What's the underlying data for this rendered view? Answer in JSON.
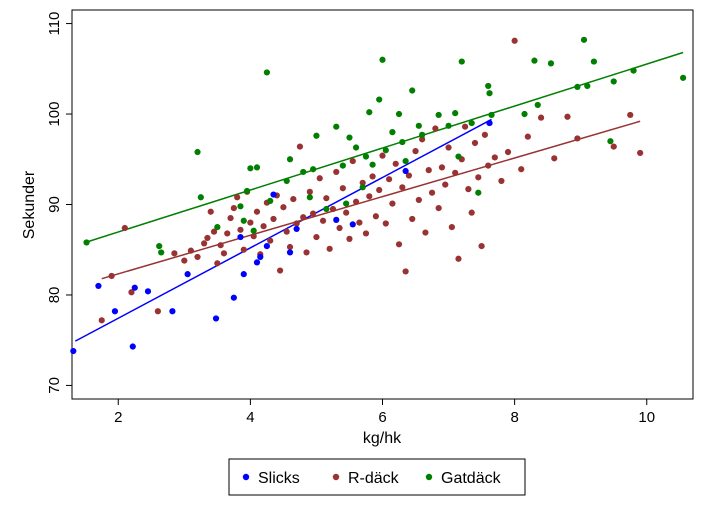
{
  "chart_data": {
    "type": "scatter",
    "title": "",
    "xlabel": "kg/hk",
    "ylabel": "Sekunder",
    "xlim": [
      1.3,
      10.7
    ],
    "ylim": [
      68.5,
      111.5
    ],
    "x_ticks": [
      2,
      4,
      6,
      8,
      10
    ],
    "y_ticks": [
      70,
      80,
      90,
      100,
      110
    ],
    "grid": false,
    "legend_position": "bottom",
    "series": [
      {
        "name": "Slicks",
        "color": "#0000ff",
        "fit": {
          "x": [
            1.35,
            7.65
          ],
          "y": [
            74.9,
            99.4
          ]
        },
        "points": [
          [
            1.32,
            73.8
          ],
          [
            1.7,
            81.0
          ],
          [
            1.95,
            78.2
          ],
          [
            2.22,
            74.3
          ],
          [
            2.25,
            80.8
          ],
          [
            2.45,
            80.4
          ],
          [
            2.82,
            78.2
          ],
          [
            3.05,
            82.3
          ],
          [
            3.48,
            77.4
          ],
          [
            3.75,
            79.7
          ],
          [
            3.85,
            86.4
          ],
          [
            3.9,
            82.3
          ],
          [
            4.1,
            83.6
          ],
          [
            4.15,
            84.2
          ],
          [
            4.25,
            85.4
          ],
          [
            4.35,
            91.1
          ],
          [
            4.6,
            84.7
          ],
          [
            4.7,
            87.3
          ],
          [
            5.3,
            88.3
          ],
          [
            5.55,
            87.8
          ],
          [
            6.35,
            93.7
          ],
          [
            7.62,
            99.0
          ]
        ]
      },
      {
        "name": "R-däck",
        "color": "#993333",
        "fit": {
          "x": [
            1.75,
            9.9
          ],
          "y": [
            81.8,
            99.2
          ]
        },
        "points": [
          [
            1.75,
            77.2
          ],
          [
            1.9,
            82.1
          ],
          [
            2.1,
            87.4
          ],
          [
            2.2,
            80.3
          ],
          [
            2.6,
            78.2
          ],
          [
            2.85,
            84.6
          ],
          [
            3.0,
            83.8
          ],
          [
            3.1,
            84.9
          ],
          [
            3.2,
            84.2
          ],
          [
            3.3,
            85.7
          ],
          [
            3.35,
            86.3
          ],
          [
            3.4,
            89.2
          ],
          [
            3.45,
            87.0
          ],
          [
            3.5,
            83.5
          ],
          [
            3.55,
            85.5
          ],
          [
            3.6,
            84.6
          ],
          [
            3.65,
            86.8
          ],
          [
            3.7,
            88.5
          ],
          [
            3.75,
            89.6
          ],
          [
            3.8,
            90.8
          ],
          [
            3.85,
            87.2
          ],
          [
            3.9,
            85.0
          ],
          [
            3.95,
            91.4
          ],
          [
            4.0,
            88.0
          ],
          [
            4.05,
            86.5
          ],
          [
            4.1,
            89.2
          ],
          [
            4.15,
            84.5
          ],
          [
            4.2,
            87.6
          ],
          [
            4.25,
            90.2
          ],
          [
            4.3,
            86.0
          ],
          [
            4.35,
            88.4
          ],
          [
            4.4,
            91.0
          ],
          [
            4.45,
            82.7
          ],
          [
            4.5,
            89.7
          ],
          [
            4.55,
            87.0
          ],
          [
            4.6,
            85.3
          ],
          [
            4.65,
            90.6
          ],
          [
            4.7,
            87.9
          ],
          [
            4.75,
            96.4
          ],
          [
            4.8,
            88.6
          ],
          [
            4.85,
            84.7
          ],
          [
            4.9,
            91.4
          ],
          [
            4.95,
            89.0
          ],
          [
            5.0,
            86.4
          ],
          [
            5.05,
            92.9
          ],
          [
            5.1,
            88.2
          ],
          [
            5.15,
            90.7
          ],
          [
            5.2,
            85.1
          ],
          [
            5.25,
            89.5
          ],
          [
            5.3,
            93.6
          ],
          [
            5.35,
            87.4
          ],
          [
            5.4,
            91.8
          ],
          [
            5.45,
            89.1
          ],
          [
            5.5,
            86.2
          ],
          [
            5.55,
            94.8
          ],
          [
            5.6,
            90.3
          ],
          [
            5.65,
            88.0
          ],
          [
            5.7,
            92.4
          ],
          [
            5.75,
            86.8
          ],
          [
            5.8,
            90.9
          ],
          [
            5.85,
            93.1
          ],
          [
            5.9,
            88.7
          ],
          [
            5.95,
            91.6
          ],
          [
            6.0,
            95.4
          ],
          [
            6.05,
            87.9
          ],
          [
            6.1,
            92.8
          ],
          [
            6.15,
            90.1
          ],
          [
            6.2,
            94.5
          ],
          [
            6.25,
            85.6
          ],
          [
            6.3,
            91.9
          ],
          [
            6.35,
            82.6
          ],
          [
            6.4,
            93.2
          ],
          [
            6.45,
            88.4
          ],
          [
            6.5,
            95.9
          ],
          [
            6.55,
            90.5
          ],
          [
            6.6,
            97.2
          ],
          [
            6.65,
            86.9
          ],
          [
            6.7,
            93.8
          ],
          [
            6.75,
            91.3
          ],
          [
            6.8,
            98.4
          ],
          [
            6.85,
            89.6
          ],
          [
            6.9,
            94.1
          ],
          [
            6.95,
            92.2
          ],
          [
            7.0,
            96.3
          ],
          [
            7.05,
            87.5
          ],
          [
            7.1,
            93.5
          ],
          [
            7.15,
            84.0
          ],
          [
            7.2,
            95.0
          ],
          [
            7.25,
            98.6
          ],
          [
            7.3,
            91.7
          ],
          [
            7.35,
            89.1
          ],
          [
            7.4,
            96.8
          ],
          [
            7.45,
            93.0
          ],
          [
            7.5,
            85.4
          ],
          [
            7.55,
            97.7
          ],
          [
            7.6,
            94.3
          ],
          [
            7.7,
            95.2
          ],
          [
            7.8,
            92.6
          ],
          [
            7.9,
            95.8
          ],
          [
            8.0,
            108.1
          ],
          [
            8.1,
            93.9
          ],
          [
            8.2,
            97.5
          ],
          [
            8.4,
            99.6
          ],
          [
            8.6,
            95.1
          ],
          [
            8.8,
            99.7
          ],
          [
            8.95,
            97.3
          ],
          [
            9.5,
            96.4
          ],
          [
            9.75,
            99.9
          ],
          [
            9.9,
            95.7
          ]
        ]
      },
      {
        "name": "Gatdäck",
        "color": "#007f00",
        "fit": {
          "x": [
            1.5,
            10.55
          ],
          "y": [
            85.8,
            106.8
          ]
        },
        "points": [
          [
            1.52,
            85.8
          ],
          [
            2.62,
            85.4
          ],
          [
            2.65,
            84.7
          ],
          [
            3.2,
            95.8
          ],
          [
            3.25,
            90.8
          ],
          [
            3.5,
            87.5
          ],
          [
            3.85,
            89.8
          ],
          [
            3.9,
            88.2
          ],
          [
            3.95,
            91.5
          ],
          [
            4.0,
            94.0
          ],
          [
            4.05,
            87.1
          ],
          [
            4.1,
            94.1
          ],
          [
            4.25,
            104.6
          ],
          [
            4.3,
            90.4
          ],
          [
            4.55,
            92.6
          ],
          [
            4.6,
            95.0
          ],
          [
            4.8,
            93.6
          ],
          [
            4.9,
            90.8
          ],
          [
            4.95,
            93.9
          ],
          [
            5.0,
            97.6
          ],
          [
            5.15,
            89.5
          ],
          [
            5.3,
            98.6
          ],
          [
            5.4,
            94.3
          ],
          [
            5.45,
            90.1
          ],
          [
            5.5,
            97.4
          ],
          [
            5.6,
            96.3
          ],
          [
            5.7,
            91.9
          ],
          [
            5.75,
            95.3
          ],
          [
            5.8,
            100.2
          ],
          [
            5.85,
            94.4
          ],
          [
            5.95,
            101.6
          ],
          [
            6.0,
            106.0
          ],
          [
            6.05,
            96.0
          ],
          [
            6.15,
            98.0
          ],
          [
            6.25,
            100.0
          ],
          [
            6.3,
            96.9
          ],
          [
            6.35,
            94.8
          ],
          [
            6.45,
            102.6
          ],
          [
            6.55,
            98.7
          ],
          [
            6.6,
            97.7
          ],
          [
            6.85,
            99.9
          ],
          [
            7.0,
            98.7
          ],
          [
            7.1,
            100.1
          ],
          [
            7.15,
            95.3
          ],
          [
            7.2,
            105.8
          ],
          [
            7.35,
            99.0
          ],
          [
            7.45,
            91.3
          ],
          [
            7.6,
            103.1
          ],
          [
            7.62,
            102.3
          ],
          [
            7.65,
            99.9
          ],
          [
            8.15,
            100.0
          ],
          [
            8.3,
            105.9
          ],
          [
            8.35,
            101.0
          ],
          [
            8.55,
            105.6
          ],
          [
            8.95,
            103.0
          ],
          [
            9.05,
            108.2
          ],
          [
            9.1,
            103.1
          ],
          [
            9.2,
            105.8
          ],
          [
            9.45,
            97.0
          ],
          [
            9.5,
            103.6
          ],
          [
            9.8,
            104.8
          ],
          [
            10.55,
            104.0
          ]
        ]
      }
    ]
  }
}
